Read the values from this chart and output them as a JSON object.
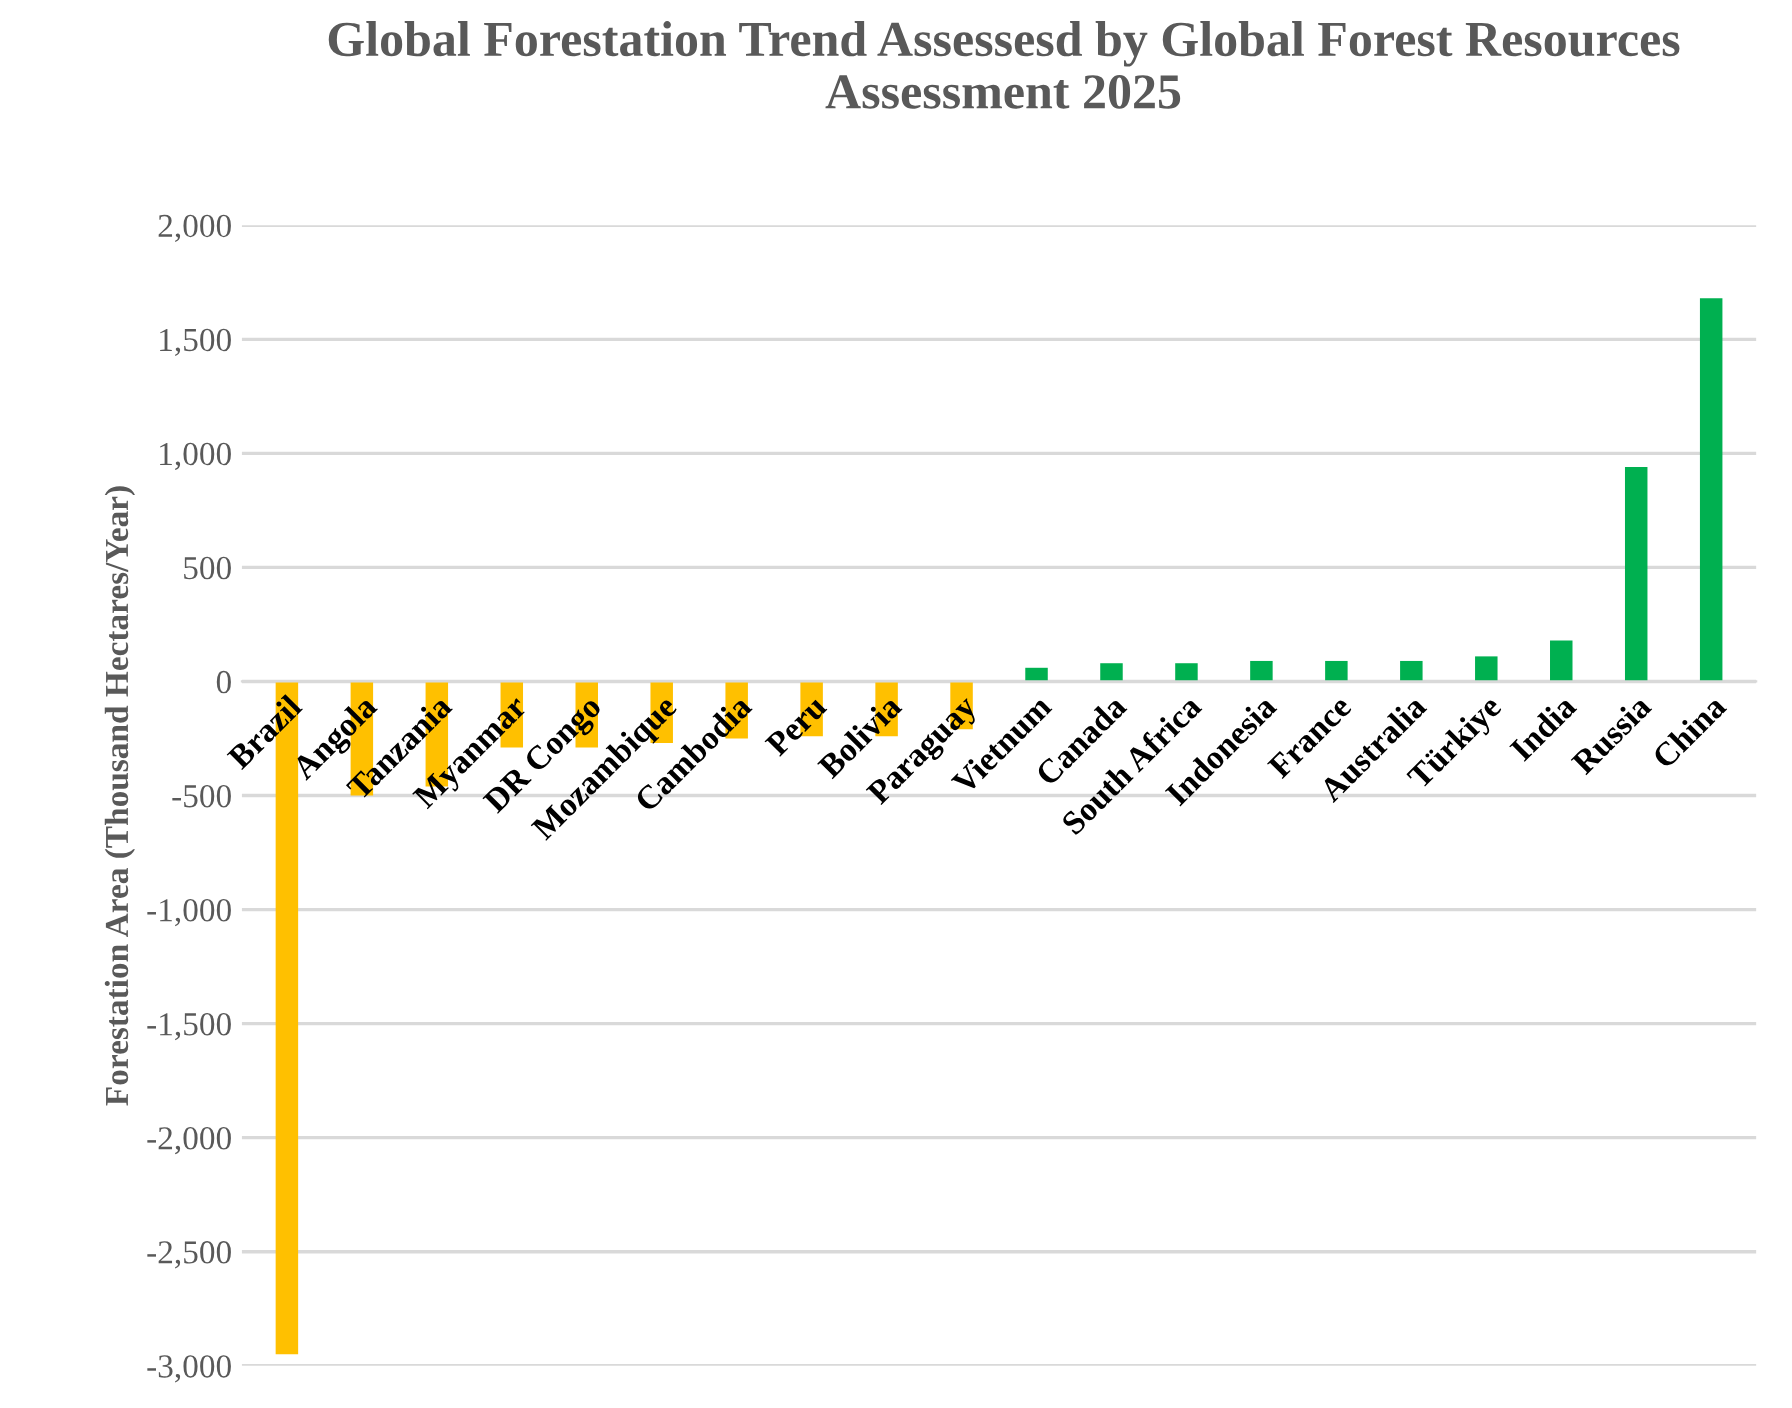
{
  "chart_data": {
    "type": "bar",
    "title": "Global Forestation Trend Assessesd by Global Forest Resources Assessment 2025",
    "ylabel": "Forestation Area (Thousand Hectares/Year)",
    "categories": [
      "Brazil",
      "Angola",
      "Tanzania",
      "Myanmar",
      "DR Congo",
      "Mozambique",
      "Cambodia",
      "Peru",
      "Bolivia",
      "Paraguay",
      "Vietnum",
      "Canada",
      "South Africa",
      "Indonesia",
      "France",
      "Australia",
      "Türkiye",
      "India",
      "Russia",
      "China"
    ],
    "values": [
      -2950,
      -500,
      -460,
      -290,
      -290,
      -270,
      -250,
      -240,
      -240,
      -210,
      60,
      80,
      80,
      90,
      90,
      90,
      110,
      180,
      940,
      1680
    ],
    "colors": [
      "#ffc000",
      "#ffc000",
      "#ffc000",
      "#ffc000",
      "#ffc000",
      "#ffc000",
      "#ffc000",
      "#ffc000",
      "#ffc000",
      "#ffc000",
      "#00b050",
      "#00b050",
      "#00b050",
      "#00b050",
      "#00b050",
      "#00b050",
      "#00b050",
      "#00b050",
      "#00b050",
      "#00b050"
    ],
    "ylim": [
      -3000,
      2000
    ],
    "yticks": [
      {
        "value": -3000,
        "label": "-3,000"
      },
      {
        "value": -2500,
        "label": "-2,500"
      },
      {
        "value": -2000,
        "label": "-2,000"
      },
      {
        "value": -1500,
        "label": "-1,500"
      },
      {
        "value": -1000,
        "label": "-1,000"
      },
      -500,
      0,
      500,
      {
        "value": 1000,
        "label": "1,000"
      },
      {
        "value": 1500,
        "label": "1,500"
      },
      {
        "value": 2000,
        "label": "2,000"
      }
    ],
    "grid": "y"
  }
}
